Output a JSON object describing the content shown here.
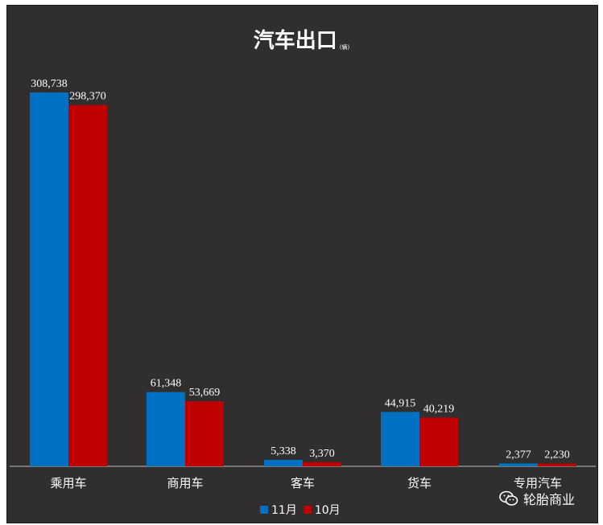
{
  "chart_data": {
    "type": "bar",
    "title": "汽车出口",
    "unit": "(辆)",
    "categories": [
      "乘用车",
      "商用车",
      "客车",
      "货车",
      "专用汽车"
    ],
    "series": [
      {
        "name": "11月",
        "color": "#0070c0",
        "values": [
          308738,
          61348,
          5338,
          44915,
          2377
        ],
        "labels": [
          "308,738",
          "61,348",
          "5,338",
          "44,915",
          "2,377"
        ]
      },
      {
        "name": "10月",
        "color": "#c00000",
        "values": [
          298370,
          53669,
          3370,
          40219,
          2230
        ],
        "labels": [
          "298,370",
          "53,669",
          "3,370",
          "40,219",
          "2,230"
        ]
      }
    ],
    "ylim": [
      0,
      308738
    ],
    "grid": false,
    "legend": "bottom"
  },
  "watermark": {
    "text": "轮胎商业",
    "icon": "wechat-icon"
  }
}
